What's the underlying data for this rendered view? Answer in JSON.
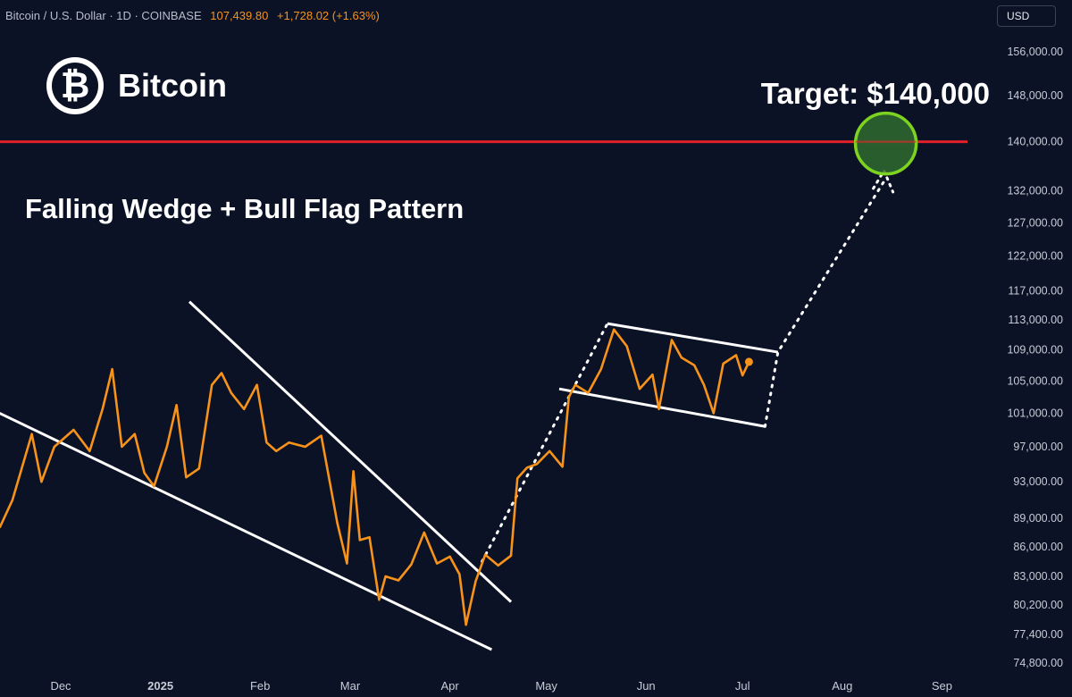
{
  "header": {
    "symbol": "Bitcoin / U.S. Dollar · 1D · COINBASE",
    "price": "107,439.80",
    "change": "+1,728.02 (+1.63%)",
    "currency": "USD"
  },
  "logo_text": "Bitcoin",
  "colors": {
    "background": "#0b1226",
    "price_line": "#f7931a",
    "target_line": "#e0202a",
    "target_circle_stroke": "#7ed321",
    "target_circle_fill": "#2f6b2f",
    "trendlines": "#ffffff",
    "axis_text": "#c8ccd6"
  },
  "chart_data": {
    "type": "line",
    "title": "Falling Wedge + Bull Flag Pattern",
    "annotation": "Target: $140,000",
    "xlabel": "",
    "ylabel": "",
    "x_ticks": [
      "Dec",
      "2025",
      "Feb",
      "Mar",
      "Apr",
      "May",
      "Jun",
      "Jul",
      "Aug",
      "Sep"
    ],
    "x_tick_dates": [
      "2024-12-01",
      "2025-01-01",
      "2025-02-01",
      "2025-03-01",
      "2025-04-01",
      "2025-05-01",
      "2025-06-01",
      "2025-07-01",
      "2025-08-01",
      "2025-09-01"
    ],
    "y_ticks": [
      74800,
      77400,
      80200,
      83000,
      86000,
      89000,
      93000,
      97000,
      101000,
      105000,
      109000,
      113000,
      117000,
      122000,
      127000,
      132000,
      140000,
      148000,
      156000
    ],
    "y_tick_labels": [
      "74,800.00",
      "77,400.00",
      "80,200.00",
      "83,000.00",
      "86,000.00",
      "89,000.00",
      "93,000.00",
      "97,000.00",
      "101,000.00",
      "105,000.00",
      "109,000.00",
      "113,000.00",
      "117,000.00",
      "122,000.00",
      "127,000.00",
      "132,000.00",
      "140,000.00",
      "148,000.00",
      "156,000.00"
    ],
    "y_scale": "log",
    "grid": false,
    "series": [
      {
        "points": [
          [
            "2024-11-12",
            88000
          ],
          [
            "2024-11-16",
            91000
          ],
          [
            "2024-11-22",
            98500
          ],
          [
            "2024-11-25",
            93000
          ],
          [
            "2024-11-29",
            97000
          ],
          [
            "2024-12-05",
            99000
          ],
          [
            "2024-12-10",
            96500
          ],
          [
            "2024-12-14",
            101500
          ],
          [
            "2024-12-17",
            106500
          ],
          [
            "2024-12-20",
            97000
          ],
          [
            "2024-12-24",
            98500
          ],
          [
            "2024-12-27",
            94000
          ],
          [
            "2024-12-30",
            92500
          ],
          [
            "2025-01-03",
            97000
          ],
          [
            "2025-01-06",
            102000
          ],
          [
            "2025-01-09",
            93500
          ],
          [
            "2025-01-13",
            94500
          ],
          [
            "2025-01-17",
            104500
          ],
          [
            "2025-01-20",
            106000
          ],
          [
            "2025-01-23",
            103500
          ],
          [
            "2025-01-27",
            101500
          ],
          [
            "2025-01-31",
            104500
          ],
          [
            "2025-02-03",
            97500
          ],
          [
            "2025-02-06",
            96500
          ],
          [
            "2025-02-10",
            97500
          ],
          [
            "2025-02-15",
            97000
          ],
          [
            "2025-02-20",
            98300
          ],
          [
            "2025-02-25",
            88500
          ],
          [
            "2025-02-28",
            84300
          ],
          [
            "2025-03-02",
            94200
          ],
          [
            "2025-03-04",
            86700
          ],
          [
            "2025-03-07",
            87000
          ],
          [
            "2025-03-10",
            80700
          ],
          [
            "2025-03-12",
            83000
          ],
          [
            "2025-03-16",
            82600
          ],
          [
            "2025-03-20",
            84200
          ],
          [
            "2025-03-24",
            87500
          ],
          [
            "2025-03-28",
            84300
          ],
          [
            "2025-04-01",
            85000
          ],
          [
            "2025-04-04",
            83200
          ],
          [
            "2025-04-06",
            78300
          ],
          [
            "2025-04-09",
            82500
          ],
          [
            "2025-04-12",
            85200
          ],
          [
            "2025-04-16",
            84100
          ],
          [
            "2025-04-20",
            85100
          ],
          [
            "2025-04-22",
            93400
          ],
          [
            "2025-04-25",
            94600
          ],
          [
            "2025-04-28",
            95000
          ],
          [
            "2025-05-02",
            96500
          ],
          [
            "2025-05-06",
            94700
          ],
          [
            "2025-05-08",
            103000
          ],
          [
            "2025-05-10",
            104500
          ],
          [
            "2025-05-14",
            103500
          ],
          [
            "2025-05-18",
            106500
          ],
          [
            "2025-05-22",
            111700
          ],
          [
            "2025-05-26",
            109500
          ],
          [
            "2025-05-30",
            104000
          ],
          [
            "2025-06-03",
            105800
          ],
          [
            "2025-06-05",
            101500
          ],
          [
            "2025-06-09",
            110300
          ],
          [
            "2025-06-12",
            108000
          ],
          [
            "2025-06-16",
            107000
          ],
          [
            "2025-06-19",
            104500
          ],
          [
            "2025-06-22",
            101000
          ],
          [
            "2025-06-25",
            107200
          ],
          [
            "2025-06-29",
            108300
          ],
          [
            "2025-07-01",
            105700
          ],
          [
            "2025-07-03",
            107440
          ]
        ]
      }
    ],
    "trendlines": [
      {
        "from": [
          "2024-11-12",
          101000
        ],
        "to": [
          "2025-04-14",
          76000
        ]
      },
      {
        "from": [
          "2025-01-10",
          115500
        ],
        "to": [
          "2025-04-20",
          80500
        ]
      },
      {
        "from": [
          "2025-05-20",
          112500
        ],
        "to": [
          "2025-07-12",
          108700
        ]
      },
      {
        "from": [
          "2025-05-05",
          104000
        ],
        "to": [
          "2025-07-08",
          99400
        ]
      }
    ],
    "projection_lines": [
      {
        "from": [
          "2025-04-11",
          84500
        ],
        "to": [
          "2025-05-20",
          112500
        ]
      },
      {
        "from": [
          "2025-07-08",
          99400
        ],
        "to": [
          "2025-07-12",
          108700
        ],
        "then": [
          "2025-08-14",
          133500
        ]
      }
    ],
    "target": {
      "value": 140000,
      "date": "2025-08-14",
      "label": "Target: $140,000"
    }
  }
}
